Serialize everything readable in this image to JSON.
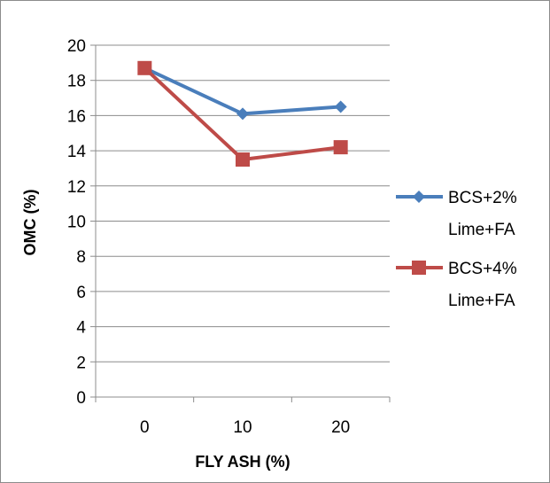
{
  "chart_data": {
    "type": "line",
    "title": "",
    "xlabel": "FLY ASH (%)",
    "ylabel": "OMC (%)",
    "categories": [
      "0",
      "10",
      "20"
    ],
    "ylim": [
      0,
      20
    ],
    "ytick_step": 2,
    "grid": true,
    "legend_position": "right",
    "series": [
      {
        "name": "BCS+2% Lime+FA",
        "name_lines": [
          "BCS+2%",
          "Lime+FA"
        ],
        "values": [
          18.7,
          16.1,
          16.5
        ],
        "color": "#4a7ebb",
        "marker": "diamond"
      },
      {
        "name": "BCS+4% Lime+FA",
        "name_lines": [
          "BCS+4%",
          "Lime+FA"
        ],
        "values": [
          18.7,
          13.5,
          14.2
        ],
        "color": "#be4b48",
        "marker": "square"
      }
    ]
  }
}
